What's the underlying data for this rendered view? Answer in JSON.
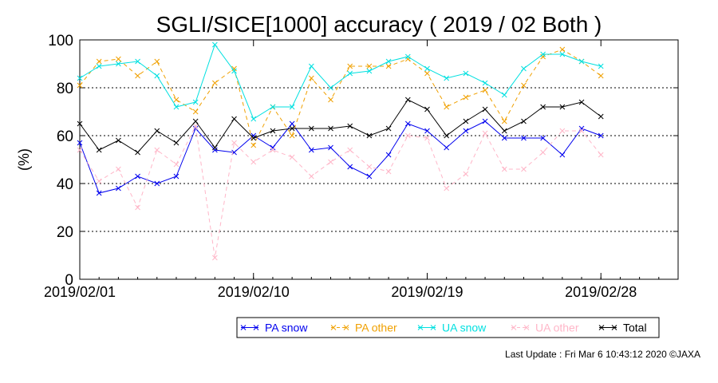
{
  "chart_data": {
    "type": "line",
    "title": "SGLI/SICE[1000] accuracy ( 2019 / 02 Both )",
    "xlabel": "",
    "ylabel": "(%)",
    "ylim": [
      0,
      100
    ],
    "yticks": [
      0,
      20,
      40,
      60,
      80,
      100
    ],
    "xlim": [
      1,
      32
    ],
    "xticks": [
      {
        "day": 1,
        "label": "2019/02/01"
      },
      {
        "day": 10,
        "label": "2019/02/10"
      },
      {
        "day": 19,
        "label": "2019/02/19"
      },
      {
        "day": 28,
        "label": "2019/02/28"
      }
    ],
    "grid": "horizontal dotted at 20, 40, 60, 80",
    "legend_position": "bottom-right",
    "series": [
      {
        "name": "PA snow",
        "color": "#0000ee",
        "dash": "solid",
        "x": [
          1,
          2,
          3,
          4,
          5,
          6,
          7,
          8,
          9,
          10,
          11,
          12,
          13,
          14,
          15,
          16,
          17,
          18,
          19,
          20,
          21,
          22,
          23,
          24,
          25,
          26,
          27,
          28
        ],
        "values": [
          57,
          36,
          38,
          43,
          40,
          43,
          63,
          54,
          53,
          60,
          55,
          65,
          54,
          55,
          47,
          43,
          52,
          65,
          62,
          55,
          62,
          66,
          59,
          59,
          59,
          52,
          63,
          60
        ]
      },
      {
        "name": "PA other",
        "color": "#f0a000",
        "dash": "dashed",
        "x": [
          1,
          2,
          3,
          4,
          5,
          6,
          7,
          8,
          9,
          10,
          11,
          12,
          13,
          14,
          15,
          16,
          17,
          18,
          19,
          20,
          21,
          22,
          23,
          24,
          25,
          26,
          27,
          28
        ],
        "values": [
          81,
          91,
          92,
          85,
          91,
          75,
          70,
          82,
          88,
          56,
          72,
          60,
          84,
          75,
          89,
          89,
          89,
          92,
          86,
          72,
          76,
          79,
          66,
          81,
          93,
          96,
          91,
          85
        ]
      },
      {
        "name": "UA snow",
        "color": "#00e0e0",
        "dash": "solid",
        "x": [
          1,
          2,
          3,
          4,
          5,
          6,
          7,
          8,
          9,
          10,
          11,
          12,
          13,
          14,
          15,
          16,
          17,
          18,
          19,
          20,
          21,
          22,
          23,
          24,
          25,
          26,
          27,
          28
        ],
        "values": [
          84,
          89,
          90,
          91,
          85,
          72,
          74,
          98,
          87,
          67,
          72,
          72,
          89,
          80,
          86,
          87,
          91,
          93,
          88,
          84,
          86,
          82,
          77,
          88,
          94,
          94,
          91,
          89
        ]
      },
      {
        "name": "UA other",
        "color": "#ffb6c8",
        "dash": "dashed",
        "x": [
          1,
          2,
          3,
          4,
          5,
          6,
          7,
          8,
          9,
          10,
          11,
          12,
          13,
          14,
          15,
          16,
          17,
          18,
          19,
          20,
          21,
          22,
          23,
          24,
          25,
          26,
          27,
          28
        ],
        "values": [
          54,
          41,
          46,
          30,
          54,
          48,
          64,
          9,
          57,
          49,
          54,
          51,
          43,
          49,
          54,
          47,
          45,
          60,
          59,
          38,
          44,
          61,
          46,
          46,
          53,
          62,
          62,
          52
        ]
      },
      {
        "name": "Total",
        "color": "#000000",
        "dash": "solid",
        "x": [
          1,
          2,
          3,
          4,
          5,
          6,
          7,
          8,
          9,
          10,
          11,
          12,
          13,
          14,
          15,
          16,
          17,
          18,
          19,
          20,
          21,
          22,
          23,
          24,
          25,
          26,
          27,
          28
        ],
        "values": [
          65,
          54,
          58,
          53,
          62,
          57,
          66,
          55,
          67,
          59,
          62,
          63,
          63,
          63,
          64,
          60,
          63,
          75,
          71,
          60,
          66,
          71,
          62,
          66,
          72,
          72,
          74,
          68
        ]
      }
    ]
  },
  "footer": {
    "last_update": "Last Update : Fri Mar  6 10:43:12 2020  ©JAXA"
  }
}
